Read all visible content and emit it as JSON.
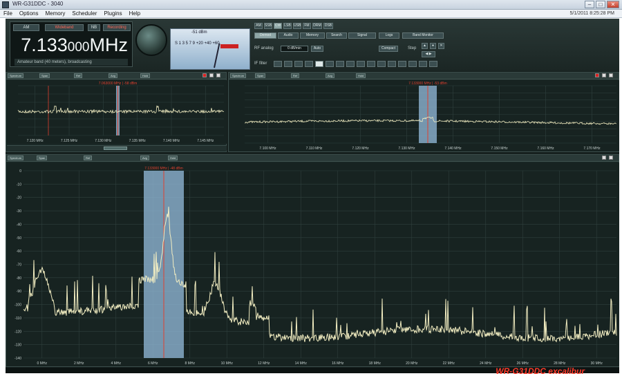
{
  "window": {
    "title": "WR-G31DDC - 3040"
  },
  "menu": {
    "items": [
      "File",
      "Options",
      "Memory",
      "Scheduler",
      "Plugins",
      "Help"
    ],
    "clock": "5/1/2011 8:25:28 PM"
  },
  "receiver": {
    "freq_main": "7.133",
    "freq_fine": "000",
    "unit": "MHz",
    "status_line": "Amateur band (40 meters), broadcasting",
    "mode_buttons": [
      "AM",
      "Wideband",
      "NB",
      "Recording"
    ]
  },
  "smeter": {
    "level_pct": 62,
    "readout": "-51 dBm"
  },
  "controls": {
    "tabs": [
      "Demod",
      "Audio",
      "Memory",
      "Search",
      "Signal",
      "Logs",
      "Band Monitor"
    ],
    "top_row": [
      "AM",
      "SSB",
      "CW",
      "LSB",
      "USB",
      "FM",
      "DRM",
      "DSB"
    ],
    "rf_label": "RF analog",
    "step_label": "Step",
    "rf_value": "0 dB/min",
    "auto_label": "Auto",
    "step_btn": "Compact",
    "ifbw_label": "IF filter"
  },
  "colors": {
    "trace": "#f3eec2",
    "highlight": "#8fb7d6",
    "marker": "#e0402f",
    "grid": "#2f403e"
  },
  "panels": [
    {
      "name": "Spectrum",
      "labels": [
        "Span",
        "Ref",
        "Avg",
        "Hold"
      ],
      "marker": "7.063000 MHz | -58 dBm",
      "xticks": [
        "7.120 MHz",
        "7.125 MHz",
        "7.130 MHz",
        "7.135 MHz",
        "7.140 MHz",
        "7.145 MHz"
      ]
    },
    {
      "name": "Spectrum",
      "labels": [
        "Span",
        "Ref",
        "Avg",
        "Hold"
      ],
      "marker": "7.133000 MHz | -53 dBm",
      "xticks": [
        "7.100 MHz",
        "7.110 MHz",
        "7.120 MHz",
        "7.130 MHz",
        "7.140 MHz",
        "7.150 MHz",
        "7.160 MHz",
        "7.170 MHz"
      ]
    },
    {
      "name": "Spectrum",
      "labels": [
        "Span",
        "Ref",
        "Avg",
        "Hold"
      ],
      "marker": "7.133000 MHz | -48 dBm",
      "xticks": [
        "0 MHz",
        "2 MHz",
        "4 MHz",
        "6 MHz",
        "8 MHz",
        "10 MHz",
        "12 MHz",
        "14 MHz",
        "16 MHz",
        "18 MHz",
        "20 MHz",
        "22 MHz",
        "24 MHz",
        "26 MHz",
        "28 MHz",
        "30 MHz"
      ],
      "yticks": [
        "0",
        "-10",
        "-20",
        "-30",
        "-40",
        "-50",
        "-60",
        "-70",
        "-80",
        "-90",
        "-100",
        "-110",
        "-120",
        "-130",
        "-140"
      ]
    }
  ],
  "logo_text": "WR-G31DDC excalibur"
}
